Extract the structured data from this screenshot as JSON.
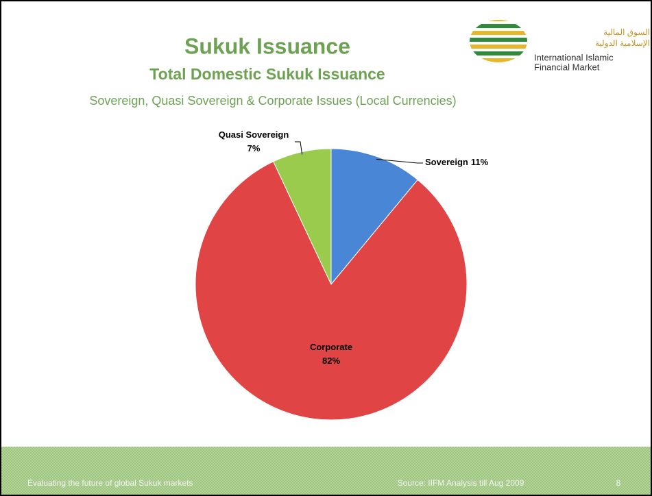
{
  "header": {
    "title": "Sukuk Issuance",
    "subtitle": "Total Domestic Sukuk Issuance",
    "description": "Sovereign, Quasi Sovereign & Corporate Issues (Local Currencies)"
  },
  "logo": {
    "arabic_line1": "السوق المالية",
    "arabic_line2": "الإسلامية الدولية",
    "english_line1": "International Islamic",
    "english_line2": "Financial Market"
  },
  "chart_data": {
    "type": "pie",
    "categories": [
      "Sovereign",
      "Corporate",
      "Quasi Sovereign"
    ],
    "values": [
      11,
      82,
      7
    ],
    "value_labels": [
      "11%",
      "82%",
      "7%"
    ],
    "colors": [
      "#4a86d6",
      "#e04444",
      "#9acb4c"
    ]
  },
  "footer": {
    "left": "Evaluating the future of global Sukuk markets",
    "source": "Source: IIFM Analysis till Aug 2009",
    "page": "8"
  }
}
